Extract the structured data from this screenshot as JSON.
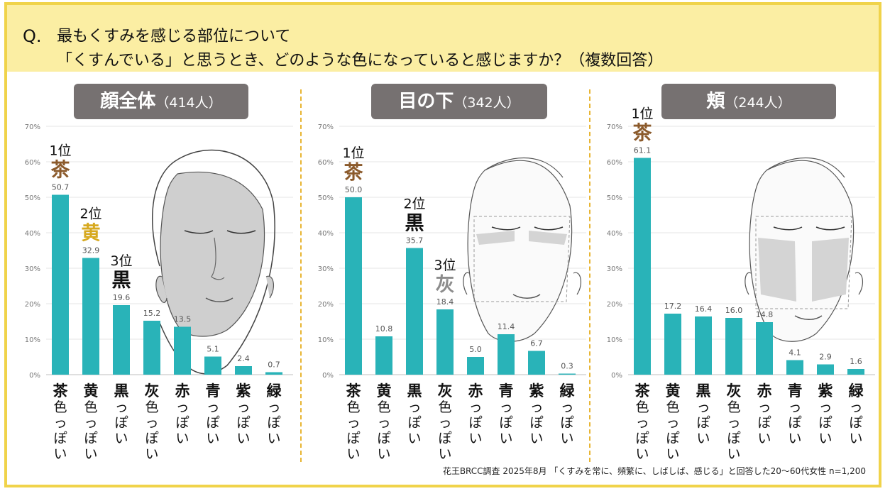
{
  "header": {
    "q_mark": "Q.",
    "line1": "最もくすみを感じる部位について",
    "line2": "「くすんでいる」と思うとき、どのような色になっていると感じますか？（複数回答）"
  },
  "footnote": "花王BRCC調査 2025年8月 「くすみを常に、頻繁に、しばしば、感じる」と回答した20〜60代女性 n=1,200",
  "colors": {
    "bar": "#29b3b8",
    "title_bg": "#767171",
    "brown": "#8b5a2b",
    "gold": "#d7a91f",
    "black": "#111111",
    "gray": "#8c8c8c"
  },
  "icons": [
    "face-full-illustration",
    "face-under-eye-illustration",
    "face-cheek-illustration"
  ],
  "chart_data": [
    {
      "type": "bar",
      "title": "顔全体",
      "subtitle": "（414人）",
      "categories": [
        "茶色っぽい",
        "黄色っぽい",
        "黒っぽい",
        "灰色っぽい",
        "赤っぽい",
        "青っぽい",
        "紫っぽい",
        "緑っぽい"
      ],
      "cat_head": [
        "茶",
        "黄",
        "黒",
        "灰",
        "赤",
        "青",
        "紫",
        "緑"
      ],
      "cat_tail": [
        "色っぽい",
        "色っぽい",
        "っぽい",
        "色っぽい",
        "っぽい",
        "っぽい",
        "っぽい",
        "っぽい"
      ],
      "values": [
        50.7,
        32.9,
        19.6,
        15.2,
        13.5,
        5.1,
        2.4,
        0.7
      ],
      "labels": [
        "50.7",
        "32.9",
        "19.6",
        "15.2",
        "13.5",
        "5.1",
        "2.4",
        "0.7"
      ],
      "yticks": [
        "0%",
        "10%",
        "20%",
        "30%",
        "40%",
        "50%",
        "60%",
        "70%"
      ],
      "ylim": [
        0,
        70
      ],
      "rankings": [
        {
          "index": 0,
          "rank": "1位",
          "color_label": "茶",
          "color": "#8b5a2b"
        },
        {
          "index": 1,
          "rank": "2位",
          "color_label": "黄",
          "color": "#d7a91f"
        },
        {
          "index": 2,
          "rank": "3位",
          "color_label": "黒",
          "color": "#111111"
        }
      ]
    },
    {
      "type": "bar",
      "title": "目の下",
      "subtitle": "（342人）",
      "categories": [
        "茶色っぽい",
        "黄色っぽい",
        "黒っぽい",
        "灰色っぽい",
        "赤っぽい",
        "青っぽい",
        "紫っぽい",
        "緑っぽい"
      ],
      "cat_head": [
        "茶",
        "黄",
        "黒",
        "灰",
        "赤",
        "青",
        "紫",
        "緑"
      ],
      "cat_tail": [
        "色っぽい",
        "色っぽい",
        "っぽい",
        "色っぽい",
        "っぽい",
        "っぽい",
        "っぽい",
        "っぽい"
      ],
      "values": [
        50.0,
        10.8,
        35.7,
        18.4,
        5.0,
        11.4,
        6.7,
        0.3
      ],
      "labels": [
        "50.0",
        "10.8",
        "35.7",
        "18.4",
        "5.0",
        "11.4",
        "6.7",
        "0.3"
      ],
      "yticks": [
        "0%",
        "10%",
        "20%",
        "30%",
        "40%",
        "50%",
        "60%",
        "70%"
      ],
      "ylim": [
        0,
        70
      ],
      "rankings": [
        {
          "index": 0,
          "rank": "1位",
          "color_label": "茶",
          "color": "#8b5a2b"
        },
        {
          "index": 2,
          "rank": "2位",
          "color_label": "黒",
          "color": "#111111"
        },
        {
          "index": 3,
          "rank": "3位",
          "color_label": "灰",
          "color": "#8c8c8c"
        }
      ]
    },
    {
      "type": "bar",
      "title": "頬",
      "subtitle": "（244人）",
      "categories": [
        "茶色っぽい",
        "黄色っぽい",
        "黒っぽい",
        "灰色っぽい",
        "赤っぽい",
        "青っぽい",
        "紫っぽい",
        "緑っぽい"
      ],
      "cat_head": [
        "茶",
        "黄",
        "黒",
        "灰",
        "赤",
        "青",
        "紫",
        "緑"
      ],
      "cat_tail": [
        "色っぽい",
        "色っぽい",
        "っぽい",
        "色っぽい",
        "っぽい",
        "っぽい",
        "っぽい",
        "っぽい"
      ],
      "values": [
        61.1,
        17.2,
        16.4,
        16.0,
        14.8,
        4.1,
        2.9,
        1.6
      ],
      "labels": [
        "61.1",
        "17.2",
        "16.4",
        "16.0",
        "14.8",
        "4.1",
        "2.9",
        "1.6"
      ],
      "yticks": [
        "0%",
        "10%",
        "20%",
        "30%",
        "40%",
        "50%",
        "60%",
        "70%"
      ],
      "ylim": [
        0,
        70
      ],
      "rankings": [
        {
          "index": 0,
          "rank": "1位",
          "color_label": "茶",
          "color": "#8b5a2b"
        }
      ]
    }
  ]
}
